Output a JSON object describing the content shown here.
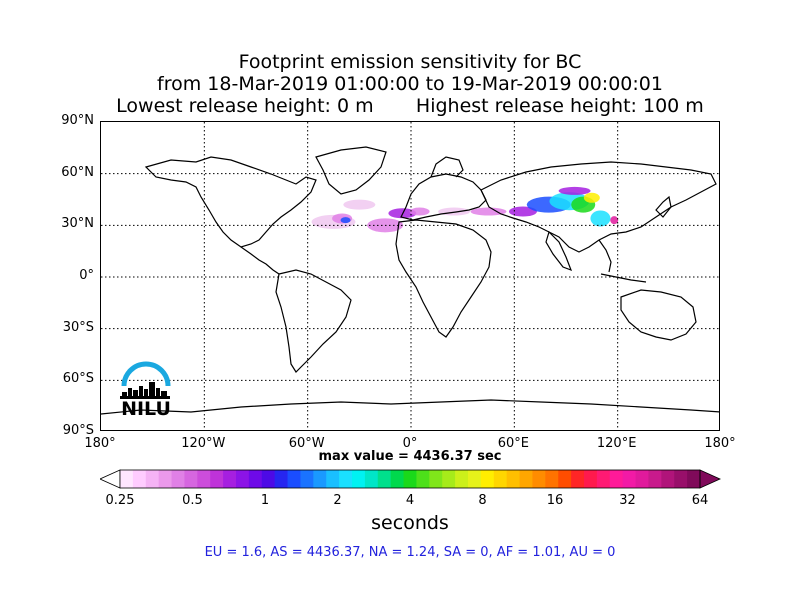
{
  "title": {
    "line1": "Footprint emission sensitivity for BC",
    "line2": "from 18-Mar-2019 01:00:00 to 19-Mar-2019 00:00:01",
    "line3_left": "Lowest release height: 0 m",
    "line3_right": "Highest release height: 100 m"
  },
  "axes": {
    "lat_labels": [
      "90°N",
      "60°N",
      "30°N",
      "0°",
      "30°S",
      "60°S",
      "90°S"
    ],
    "lat_values": [
      90,
      60,
      30,
      0,
      -30,
      -60,
      -90
    ],
    "lon_labels": [
      "180°",
      "120°W",
      "60°W",
      "0°",
      "60°E",
      "120°E",
      "180°"
    ],
    "lon_values": [
      -180,
      -120,
      -60,
      0,
      60,
      120,
      180
    ]
  },
  "max_value_text": "max value = 4436.37 sec",
  "colorbar": {
    "ticks": [
      "0.25",
      "0.5",
      "1",
      "2",
      "4",
      "8",
      "16",
      "32",
      "64"
    ],
    "tick_values": [
      0.25,
      0.5,
      1,
      2,
      4,
      8,
      16,
      32,
      64
    ],
    "label": "seconds",
    "colors": [
      "#ffe6ff",
      "#ffccff",
      "#f5b3f5",
      "#eb99eb",
      "#e080e6",
      "#d666e0",
      "#cc4ddb",
      "#bf33d9",
      "#a61fe0",
      "#8c14e6",
      "#6e0ae8",
      "#4d0ae6",
      "#2626f0",
      "#1a4dff",
      "#1a73ff",
      "#1a99ff",
      "#1abfff",
      "#1ae0ff",
      "#00f2f2",
      "#00e6c8",
      "#00e08c",
      "#00d94d",
      "#1ad91a",
      "#4de01a",
      "#80e61a",
      "#a6eb1a",
      "#ccf01a",
      "#e6f21a",
      "#ffee00",
      "#ffd600",
      "#ffbf00",
      "#ffa600",
      "#ff8c00",
      "#ff7300",
      "#ff4d00",
      "#ff2626",
      "#ff1a4d",
      "#ff1a73",
      "#ff1a99",
      "#f21aa6",
      "#e01a9c",
      "#c81a8c",
      "#b0147a",
      "#980f6a",
      "#800a5a"
    ]
  },
  "footer": "EU = 1.6,  AS = 4436.37,  NA = 1.24,  SA = 0,  AF = 1.01,  AU = 0",
  "logo": {
    "text": "NILU",
    "arc_color": "#1aa8e0"
  },
  "plume_colors": {
    "faint": "#f0c8f0",
    "light": "#e080e6",
    "purple": "#a61fe0",
    "blue": "#1a4dff",
    "cyan": "#1ae0ff",
    "green": "#1ad91a",
    "yellow": "#ffee00",
    "magenta": "#e01a9c"
  }
}
